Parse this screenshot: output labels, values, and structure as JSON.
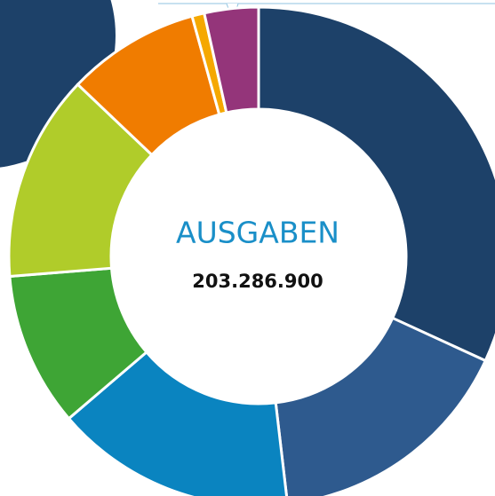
{
  "chart_data": {
    "type": "donut",
    "title": "AUSGABEN",
    "total_label": "203.286.900",
    "values": [
      31.9,
      16.3,
      15.6,
      10.0,
      13.4,
      8.6,
      0.8,
      3.5
    ],
    "colors": [
      "#1d4169",
      "#2e5a8e",
      "#0a84c0",
      "#3ea535",
      "#b0cc2a",
      "#f07c00",
      "#f5a800",
      "#94357a"
    ]
  }
}
